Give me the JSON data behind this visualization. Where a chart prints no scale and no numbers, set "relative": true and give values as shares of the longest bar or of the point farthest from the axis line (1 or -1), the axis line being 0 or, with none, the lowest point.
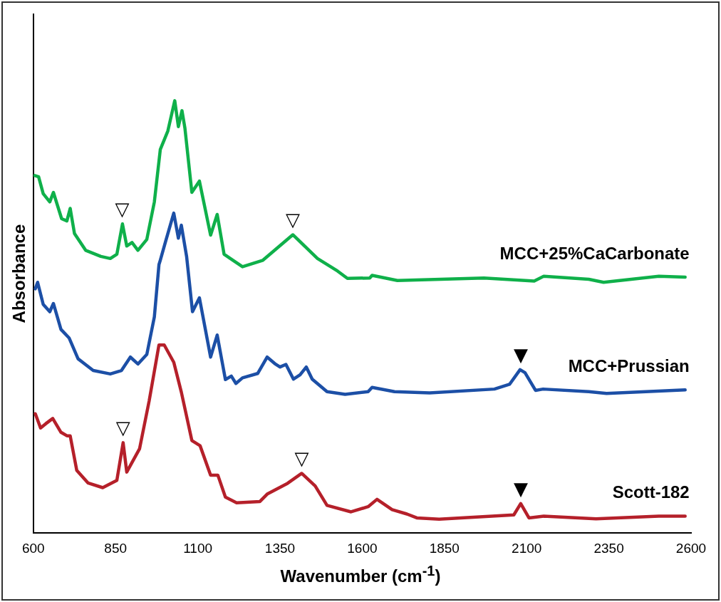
{
  "chart_data": {
    "type": "line",
    "xlabel": "Wavenumber (cm$^{-1}$)",
    "ylabel": "Absorbance",
    "relative": true,
    "legend": false,
    "grid": false,
    "marker": "none",
    "line_style": "solid",
    "xlim": [
      600,
      2600
    ],
    "xticks": [
      600,
      850,
      1100,
      1350,
      1600,
      1850,
      2100,
      2350,
      2600
    ],
    "series": [
      {
        "name": "MCC+25%CaCarbonate",
        "color": "#0fb04a",
        "x": [
          604,
          616,
          630,
          650,
          661,
          686,
          702,
          712,
          725,
          759,
          805,
          834,
          854,
          871,
          884,
          900,
          918,
          945,
          968,
          986,
          1009,
          1030,
          1041,
          1052,
          1061,
          1082,
          1105,
          1139,
          1159,
          1180,
          1207,
          1236,
          1298,
          1389,
          1464,
          1525,
          1555,
          1623,
          1630,
          1707,
          1970,
          2123,
          2152,
          2289,
          2334,
          2502,
          2582
        ],
        "values": [
          0.827,
          0.824,
          0.785,
          0.766,
          0.788,
          0.727,
          0.722,
          0.751,
          0.693,
          0.654,
          0.64,
          0.635,
          0.645,
          0.715,
          0.664,
          0.672,
          0.654,
          0.679,
          0.766,
          0.887,
          0.93,
          1.0,
          0.94,
          0.977,
          0.936,
          0.788,
          0.814,
          0.689,
          0.737,
          0.645,
          0.631,
          0.616,
          0.631,
          0.69,
          0.635,
          0.606,
          0.589,
          0.59,
          0.596,
          0.584,
          0.59,
          0.583,
          0.594,
          0.587,
          0.58,
          0.594,
          0.592
        ]
      },
      {
        "name": "MCC+Prussian",
        "color": "#1c4fa6",
        "x": [
          606,
          613,
          630,
          650,
          661,
          684,
          709,
          736,
          782,
          834,
          868,
          895,
          918,
          945,
          968,
          982,
          986,
          1002,
          1027,
          1041,
          1050,
          1066,
          1084,
          1105,
          1139,
          1159,
          1184,
          1202,
          1216,
          1236,
          1282,
          1311,
          1334,
          1350,
          1368,
          1391,
          1411,
          1430,
          1448,
          1493,
          1548,
          1618,
          1630,
          1698,
          1805,
          2002,
          2048,
          2080,
          2095,
          2127,
          2150,
          2289,
          2343,
          2582
        ],
        "values": [
          0.565,
          0.58,
          0.529,
          0.512,
          0.531,
          0.471,
          0.451,
          0.403,
          0.376,
          0.368,
          0.376,
          0.407,
          0.391,
          0.413,
          0.5,
          0.621,
          0.631,
          0.674,
          0.74,
          0.682,
          0.712,
          0.64,
          0.512,
          0.544,
          0.407,
          0.458,
          0.355,
          0.363,
          0.346,
          0.359,
          0.369,
          0.407,
          0.392,
          0.384,
          0.39,
          0.356,
          0.366,
          0.384,
          0.356,
          0.327,
          0.321,
          0.327,
          0.337,
          0.327,
          0.324,
          0.333,
          0.344,
          0.378,
          0.371,
          0.33,
          0.333,
          0.327,
          0.323,
          0.331
        ]
      },
      {
        "name": "Scott-182",
        "color": "#b5202a",
        "x": [
          606,
          622,
          638,
          659,
          684,
          702,
          712,
          732,
          766,
          811,
          854,
          873,
          884,
          923,
          952,
          982,
          998,
          1027,
          1050,
          1082,
          1107,
          1139,
          1161,
          1184,
          1218,
          1289,
          1311,
          1373,
          1416,
          1457,
          1493,
          1566,
          1618,
          1645,
          1691,
          1736,
          1766,
          1834,
          2061,
          2082,
          2107,
          2152,
          2311,
          2502,
          2582
        ],
        "values": [
          0.276,
          0.243,
          0.253,
          0.265,
          0.233,
          0.225,
          0.225,
          0.145,
          0.116,
          0.105,
          0.122,
          0.209,
          0.141,
          0.195,
          0.305,
          0.435,
          0.435,
          0.395,
          0.326,
          0.214,
          0.202,
          0.134,
          0.134,
          0.083,
          0.07,
          0.073,
          0.09,
          0.115,
          0.138,
          0.109,
          0.064,
          0.049,
          0.061,
          0.078,
          0.054,
          0.044,
          0.035,
          0.032,
          0.042,
          0.068,
          0.035,
          0.039,
          0.033,
          0.039,
          0.039
        ]
      }
    ],
    "annotations": [
      {
        "text": "▽",
        "x": 870,
        "y": 0.715
      },
      {
        "text": "▽",
        "x": 1389,
        "y": 0.69
      },
      {
        "text": "▼",
        "x": 2082,
        "y": 0.378
      },
      {
        "text": "▽",
        "x": 873,
        "y": 0.209
      },
      {
        "text": "▽",
        "x": 1416,
        "y": 0.138
      },
      {
        "text": "▼",
        "x": 2082,
        "y": 0.068
      }
    ]
  }
}
